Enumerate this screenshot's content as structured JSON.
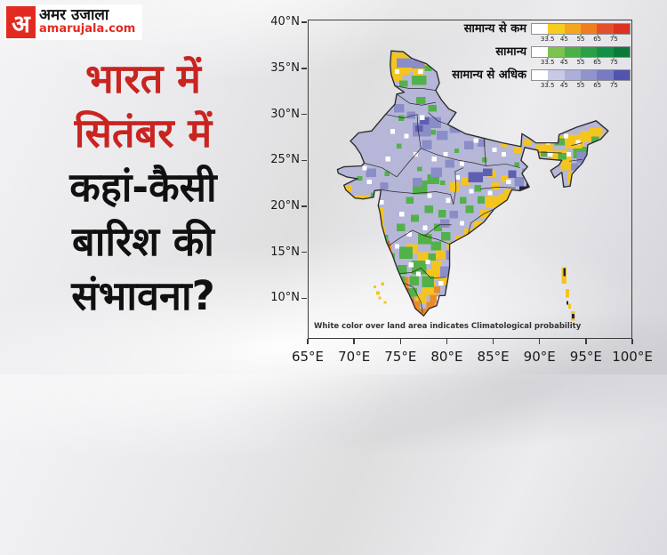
{
  "logo": {
    "monogram": "अ",
    "brand": "अमर उजाला",
    "domain": "amarujala.com",
    "red": "#e22a20"
  },
  "headline": {
    "lines": [
      {
        "text": "भारत में",
        "color": "red"
      },
      {
        "text": "सितंबर में",
        "color": "red"
      },
      {
        "text": "कहां-कैसी",
        "color": "dark"
      },
      {
        "text": "बारिश की",
        "color": "dark"
      },
      {
        "text": "संभावना?",
        "color": "dark"
      }
    ]
  },
  "map": {
    "note": "White color over land area indicates Climatological probability",
    "axes": {
      "lat_ticks": [
        {
          "label": "40°N",
          "value": 40
        },
        {
          "label": "35°N",
          "value": 35
        },
        {
          "label": "30°N",
          "value": 30
        },
        {
          "label": "25°N",
          "value": 25
        },
        {
          "label": "20°N",
          "value": 20
        },
        {
          "label": "15°N",
          "value": 15
        },
        {
          "label": "10°N",
          "value": 10
        }
      ],
      "lon_ticks": [
        {
          "label": "65°E",
          "value": 65
        },
        {
          "label": "70°E",
          "value": 70
        },
        {
          "label": "75°E",
          "value": 75
        },
        {
          "label": "80°E",
          "value": 80
        },
        {
          "label": "85°E",
          "value": 85
        },
        {
          "label": "90°E",
          "value": 90
        },
        {
          "label": "95°E",
          "value": 95
        },
        {
          "label": "100°E",
          "value": 100
        }
      ]
    },
    "legend": {
      "ticks": [
        "33.5",
        "45",
        "55",
        "65",
        "75"
      ],
      "rows": [
        {
          "label": "सामान्य से कम",
          "colors": [
            "#ffffff",
            "#f6cd1e",
            "#f3a61f",
            "#ee7e1f",
            "#e2512a",
            "#dc3222"
          ]
        },
        {
          "label": "सामान्य",
          "colors": [
            "#ffffff",
            "#7cc350",
            "#4bb049",
            "#2b9e47",
            "#149044",
            "#0a7a39"
          ]
        },
        {
          "label": "सामान्य से अधिक",
          "colors": [
            "#ffffff",
            "#c9c9e7",
            "#aeaeda",
            "#9193cd",
            "#797bc2",
            "#5254ad"
          ]
        }
      ]
    },
    "palette": {
      "yellow": "#f4c51f",
      "orange": "#ee8a22",
      "red": "#e04a27",
      "green": "#53b14a",
      "dark_purple": "#8b8dc9",
      "blue": "#5d60b2",
      "navy": "#202246",
      "white": "#ffffff",
      "base": "#b6b6d8",
      "border": "#2b2b2b"
    },
    "cells": {
      "yellow": [
        [
          73.6,
          34.3,
          2.4,
          2.4
        ],
        [
          75.9,
          34.6,
          2.2,
          1.0
        ],
        [
          74.0,
          33.6,
          1.2,
          0.9
        ],
        [
          76.4,
          33.9,
          1.0,
          0.7
        ],
        [
          70.0,
          20.6,
          1.6,
          0.6
        ],
        [
          69.0,
          21.6,
          0.8,
          0.7
        ],
        [
          72.5,
          17.6,
          0.7,
          2.3
        ],
        [
          72.9,
          16.8,
          0.5,
          1.0
        ],
        [
          80.3,
          21.6,
          1.0,
          1.0
        ],
        [
          81.6,
          22.3,
          0.9,
          0.9
        ],
        [
          84.2,
          19.8,
          1.6,
          1.3
        ],
        [
          85.6,
          20.4,
          1.2,
          1.0
        ],
        [
          83.6,
          18.7,
          1.0,
          0.9
        ],
        [
          86.2,
          21.2,
          0.8,
          0.7
        ],
        [
          84.8,
          21.8,
          0.9,
          0.8
        ],
        [
          85.8,
          22.6,
          0.8,
          0.8
        ],
        [
          84.4,
          23.2,
          0.9,
          0.7
        ],
        [
          80.0,
          15.3,
          1.0,
          0.8
        ],
        [
          80.9,
          16.0,
          1.1,
          0.8
        ],
        [
          81.9,
          16.8,
          1.1,
          0.8
        ],
        [
          82.9,
          17.6,
          1.0,
          0.8
        ],
        [
          76.7,
          9.4,
          1.1,
          1.1
        ],
        [
          77.3,
          10.4,
          1.5,
          1.5
        ],
        [
          77.8,
          12.0,
          1.4,
          1.2
        ],
        [
          78.4,
          13.1,
          1.1,
          1.0
        ],
        [
          76.8,
          13.9,
          1.4,
          1.1
        ],
        [
          75.6,
          14.9,
          1.2,
          1.0
        ],
        [
          78.8,
          14.3,
          1.0,
          0.9
        ],
        [
          79.3,
          11.4,
          0.8,
          0.8
        ],
        [
          89.6,
          25.4,
          1.6,
          1.3
        ],
        [
          91.2,
          25.0,
          1.8,
          1.1
        ],
        [
          92.8,
          26.3,
          2.0,
          1.5
        ],
        [
          94.4,
          27.0,
          1.6,
          1.2
        ],
        [
          95.4,
          27.6,
          1.4,
          0.9
        ],
        [
          92.3,
          23.9,
          1.1,
          1.6
        ],
        [
          93.0,
          22.4,
          0.7,
          1.3
        ],
        [
          90.4,
          26.2,
          1.0,
          0.8
        ],
        [
          88.3,
          26.6,
          0.8,
          0.7
        ],
        [
          91.9,
          27.0,
          0.9,
          0.7
        ],
        [
          87.2,
          25.8,
          0.8,
          0.7
        ],
        [
          85.8,
          26.5,
          0.7,
          0.6
        ]
      ],
      "orange": [
        [
          75.1,
          10.9,
          0.8,
          1.4
        ],
        [
          75.7,
          9.7,
          0.8,
          1.3
        ],
        [
          76.2,
          8.5,
          0.9,
          1.2
        ],
        [
          77.0,
          8.0,
          0.9,
          0.9
        ],
        [
          77.8,
          8.7,
          0.9,
          0.9
        ],
        [
          78.2,
          9.6,
          0.8,
          0.8
        ],
        [
          73.3,
          15.0,
          0.7,
          1.0
        ],
        [
          73.6,
          14.1,
          0.6,
          0.9
        ],
        [
          78.6,
          10.6,
          0.7,
          0.7
        ],
        [
          86.6,
          20.3,
          0.5,
          0.5
        ]
      ],
      "red": [
        [
          75.5,
          10.2,
          0.5,
          0.9
        ],
        [
          75.9,
          9.1,
          0.5,
          0.8
        ],
        [
          73.4,
          15.7,
          0.4,
          0.6
        ]
      ],
      "green": [
        [
          76.2,
          33.2,
          1.6,
          1.0
        ],
        [
          74.9,
          33.0,
          0.9,
          0.7
        ],
        [
          77.6,
          34.7,
          0.8,
          0.6
        ],
        [
          76.7,
          31.1,
          1.0,
          0.8
        ],
        [
          78.0,
          30.3,
          0.9,
          0.7
        ],
        [
          73.1,
          15.9,
          0.6,
          1.0
        ],
        [
          73.6,
          13.3,
          0.8,
          1.6
        ],
        [
          74.2,
          12.2,
          0.7,
          1.2
        ],
        [
          74.8,
          11.4,
          0.7,
          1.0
        ],
        [
          74.9,
          14.3,
          1.4,
          1.3
        ],
        [
          76.2,
          12.6,
          1.6,
          1.5
        ],
        [
          74.7,
          12.6,
          1.0,
          1.0
        ],
        [
          77.3,
          11.2,
          1.3,
          1.2
        ],
        [
          76.0,
          11.4,
          1.0,
          1.0
        ],
        [
          76.9,
          15.9,
          1.5,
          1.1
        ],
        [
          78.3,
          15.2,
          1.1,
          1.0
        ],
        [
          75.9,
          10.2,
          0.9,
          0.9
        ],
        [
          78.0,
          14.1,
          0.8,
          0.8
        ],
        [
          76.3,
          21.3,
          1.6,
          1.5
        ],
        [
          77.9,
          22.4,
          1.3,
          1.1
        ],
        [
          74.6,
          17.3,
          0.9,
          0.8
        ],
        [
          76.1,
          18.3,
          0.9,
          0.8
        ],
        [
          77.6,
          19.3,
          0.9,
          0.8
        ],
        [
          79.1,
          18.8,
          0.8,
          0.8
        ],
        [
          75.6,
          20.3,
          0.8,
          0.7
        ],
        [
          79.4,
          16.3,
          1.0,
          0.9
        ],
        [
          78.6,
          17.3,
          0.9,
          0.8
        ],
        [
          82.0,
          19.3,
          0.9,
          0.8
        ],
        [
          83.3,
          20.3,
          0.8,
          0.8
        ],
        [
          81.4,
          20.3,
          0.7,
          0.7
        ],
        [
          83.0,
          21.6,
          0.7,
          0.7
        ],
        [
          91.6,
          26.6,
          1.1,
          0.8
        ],
        [
          93.6,
          25.2,
          1.0,
          1.1
        ],
        [
          92.0,
          25.1,
          0.9,
          0.7
        ],
        [
          94.6,
          25.8,
          0.8,
          0.7
        ],
        [
          90.1,
          25.4,
          0.7,
          0.6
        ],
        [
          95.6,
          26.9,
          0.8,
          0.7
        ],
        [
          74.8,
          29.3,
          0.6,
          0.6
        ],
        [
          78.3,
          27.8,
          0.5,
          0.5
        ],
        [
          80.8,
          25.8,
          0.5,
          0.5
        ],
        [
          83.8,
          24.8,
          0.5,
          0.5
        ],
        [
          76.8,
          23.8,
          0.5,
          0.5
        ],
        [
          73.3,
          23.3,
          0.5,
          0.5
        ],
        [
          70.3,
          22.8,
          0.6,
          0.5
        ],
        [
          87.3,
          24.3,
          0.5,
          0.5
        ],
        [
          79.3,
          22.3,
          0.5,
          0.5
        ],
        [
          74.6,
          26.3,
          0.5,
          0.5
        ],
        [
          71.8,
          21.0,
          0.5,
          0.5
        ]
      ],
      "dark_purple": [
        [
          76.3,
          27.6,
          2.0,
          1.5
        ],
        [
          77.8,
          28.5,
          1.6,
          1.2
        ],
        [
          78.9,
          27.2,
          1.2,
          1.0
        ],
        [
          77.3,
          26.2,
          1.1,
          1.0
        ],
        [
          80.3,
          28.0,
          1.1,
          0.9
        ],
        [
          74.3,
          30.2,
          1.1,
          0.9
        ],
        [
          75.7,
          29.5,
          0.9,
          0.8
        ],
        [
          81.9,
          26.2,
          1.0,
          0.9
        ],
        [
          83.3,
          26.5,
          0.9,
          0.8
        ],
        [
          78.3,
          23.2,
          1.2,
          1.0
        ],
        [
          79.8,
          24.2,
          1.0,
          0.9
        ],
        [
          76.3,
          22.2,
          1.0,
          0.9
        ],
        [
          71.3,
          23.2,
          1.1,
          0.9
        ],
        [
          72.8,
          21.8,
          0.9,
          0.8
        ],
        [
          79.3,
          17.7,
          1.0,
          0.9
        ],
        [
          80.3,
          18.7,
          0.9,
          0.8
        ],
        [
          87.3,
          22.2,
          1.0,
          1.0
        ],
        [
          88.1,
          23.3,
          0.8,
          0.8
        ],
        [
          94.0,
          24.7,
          1.1,
          1.2
        ],
        [
          93.4,
          23.9,
          0.8,
          0.8
        ],
        [
          74.6,
          35.1,
          1.6,
          1.0
        ],
        [
          76.2,
          35.0,
          1.4,
          0.9
        ],
        [
          79.3,
          12.3,
          1.0,
          1.2
        ],
        [
          79.8,
          10.6,
          0.7,
          0.9
        ],
        [
          79.9,
          14.2,
          1.0,
          1.0
        ]
      ],
      "blue": [
        [
          82.3,
          22.6,
          1.6,
          1.1
        ],
        [
          83.9,
          23.3,
          1.0,
          0.8
        ],
        [
          77.1,
          28.9,
          1.0,
          0.8
        ],
        [
          86.6,
          23.1,
          0.9,
          0.8
        ],
        [
          76.6,
          28.1,
          0.8,
          0.7
        ]
      ],
      "navy": [
        [
          87.8,
          21.4,
          0.9,
          0.8
        ],
        [
          88.6,
          22.1,
          0.5,
          0.6
        ]
      ],
      "white": [
        [
          75.4,
          27.4
        ],
        [
          77.1,
          29.4
        ],
        [
          79.6,
          25.4
        ],
        [
          81.4,
          24.4
        ],
        [
          82.9,
          26.9
        ],
        [
          84.9,
          25.9
        ],
        [
          73.4,
          24.9
        ],
        [
          71.4,
          22.4
        ],
        [
          77.9,
          20.9
        ],
        [
          79.9,
          20.4
        ],
        [
          82.4,
          21.4
        ],
        [
          74.9,
          18.9
        ],
        [
          85.9,
          25.4
        ],
        [
          88.4,
          25.7
        ],
        [
          90.7,
          26.7
        ],
        [
          92.6,
          27.4
        ],
        [
          93.9,
          26.7
        ],
        [
          77.7,
          13.7
        ],
        [
          76.7,
          12.4
        ],
        [
          79.1,
          11.4
        ],
        [
          74.4,
          15.4
        ],
        [
          84.4,
          21.2
        ],
        [
          85.4,
          19.4
        ],
        [
          78.9,
          9.7
        ],
        [
          75.7,
          16.7
        ],
        [
          72.7,
          20.2
        ],
        [
          70.9,
          23.9
        ],
        [
          73.9,
          27.9
        ],
        [
          76.4,
          25.4
        ],
        [
          78.4,
          24.9
        ],
        [
          80.9,
          22.9
        ],
        [
          84.9,
          18.9
        ],
        [
          86.4,
          22.4
        ],
        [
          75.9,
          13.4
        ],
        [
          77.4,
          17.4
        ],
        [
          81.4,
          17.9
        ],
        [
          90.9,
          25.4
        ],
        [
          92.9,
          25.4
        ],
        [
          74.4,
          34.4
        ],
        [
          76.9,
          34.4
        ]
      ]
    },
    "islands": {
      "yellow": [
        [
          92.4,
          11.6,
          0.5,
          1.8
        ],
        [
          92.8,
          10.1,
          0.4,
          0.9
        ],
        [
          93.4,
          7.6,
          0.4,
          1.0
        ],
        [
          93.1,
          8.9,
          0.3,
          0.5
        ],
        [
          72.4,
          10.4,
          0.35,
          0.35
        ],
        [
          72.9,
          11.4,
          0.35,
          0.35
        ],
        [
          72.1,
          11.1,
          0.3,
          0.3
        ],
        [
          73.2,
          9.4,
          0.3,
          0.3
        ],
        [
          72.6,
          9.9,
          0.3,
          0.3
        ]
      ],
      "navy": [
        [
          92.55,
          12.4,
          0.25,
          0.9
        ],
        [
          93.5,
          7.8,
          0.25,
          0.5
        ],
        [
          92.9,
          9.3,
          0.2,
          0.4
        ]
      ]
    }
  }
}
